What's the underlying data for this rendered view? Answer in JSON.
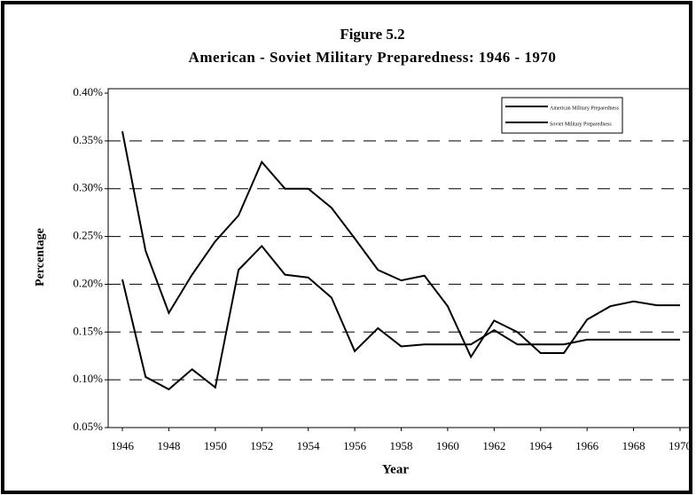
{
  "chart_data": {
    "type": "line",
    "title": "Figure 5.2",
    "subtitle": "American - Soviet Military Preparedness: 1946 - 1970",
    "x_label": "Year",
    "y_label": "Percentage",
    "x": [
      1946,
      1947,
      1948,
      1949,
      1950,
      1951,
      1952,
      1953,
      1954,
      1955,
      1956,
      1957,
      1958,
      1959,
      1960,
      1961,
      1962,
      1963,
      1964,
      1965,
      1966,
      1967,
      1968,
      1969,
      1970
    ],
    "series": [
      {
        "name": "American Military Preparedness",
        "color": "#000000",
        "values": [
          0.36,
          0.235,
          0.17,
          0.21,
          0.245,
          0.272,
          0.328,
          0.3,
          0.3,
          0.28,
          0.248,
          0.215,
          0.204,
          0.209,
          0.177,
          0.124,
          0.162,
          0.15,
          0.128,
          0.128,
          0.163,
          0.177,
          0.182,
          0.178,
          0.178
        ]
      },
      {
        "name": "Soviet Military Preparedness",
        "color": "#000000",
        "values": [
          0.205,
          0.103,
          0.09,
          0.111,
          0.092,
          0.215,
          0.24,
          0.21,
          0.207,
          0.186,
          0.13,
          0.154,
          0.135,
          0.137,
          0.137,
          0.137,
          0.152,
          0.137,
          0.137,
          0.137,
          0.142,
          0.142,
          0.142,
          0.142,
          0.142
        ]
      }
    ],
    "xlim": [
      1946,
      1970
    ],
    "xticks": [
      1946,
      1948,
      1950,
      1952,
      1954,
      1956,
      1958,
      1960,
      1962,
      1964,
      1966,
      1968,
      1970
    ],
    "ylim": [
      0.05,
      0.4
    ],
    "yticks": [
      {
        "value": 0.05,
        "label": "0.05%"
      },
      {
        "value": 0.1,
        "label": "0.10%"
      },
      {
        "value": 0.15,
        "label": "0.15%"
      },
      {
        "value": 0.2,
        "label": "0.20%"
      },
      {
        "value": 0.25,
        "label": "0.25%"
      },
      {
        "value": 0.3,
        "label": "0.30%"
      },
      {
        "value": 0.35,
        "label": "0.35%"
      },
      {
        "value": 0.4,
        "label": "0.40%"
      }
    ],
    "grid": true,
    "legend": "upper right"
  }
}
